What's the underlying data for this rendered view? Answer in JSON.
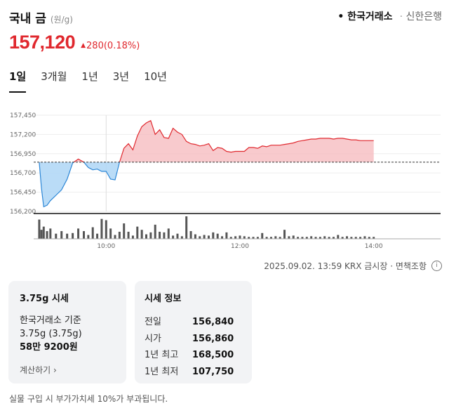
{
  "header": {
    "title": "국내 금",
    "unit": "(원/g)",
    "sources": [
      {
        "label": "한국거래소",
        "active": true
      },
      {
        "label": "신한은행",
        "active": false
      }
    ]
  },
  "price": {
    "current": "157,120",
    "change": "280",
    "change_pct": "(0.18%)",
    "direction": "up",
    "color_up": "#e0282e"
  },
  "tabs": [
    {
      "label": "1일",
      "active": true
    },
    {
      "label": "3개월",
      "active": false
    },
    {
      "label": "1년",
      "active": false
    },
    {
      "label": "3년",
      "active": false
    },
    {
      "label": "10년",
      "active": false
    }
  ],
  "chart_data": {
    "type": "line",
    "y_ticks": [
      "157,450",
      "157,200",
      "156,950",
      "156,700",
      "156,450",
      "156,200"
    ],
    "x_ticks": [
      "10:00",
      "12:00",
      "14:00"
    ],
    "ylim": [
      156200,
      157450
    ],
    "xlim_minutes": [
      535,
      900
    ],
    "baseline": 156840,
    "fill_above_color": "#f6b8bc",
    "fill_below_color": "#aed6f6",
    "line_up_color": "#e0282e",
    "line_down_color": "#2b86d6",
    "volume_color": "#555555",
    "series": {
      "x_minutes": [
        540,
        542,
        544,
        547,
        550,
        555,
        560,
        565,
        570,
        575,
        580,
        584,
        588,
        592,
        596,
        600,
        604,
        608,
        612,
        616,
        620,
        624,
        628,
        632,
        636,
        640,
        644,
        648,
        652,
        656,
        660,
        664,
        668,
        672,
        676,
        680,
        684,
        688,
        692,
        696,
        700,
        704,
        708,
        712,
        716,
        720,
        724,
        728,
        732,
        736,
        740,
        744,
        748,
        752,
        756,
        760,
        764,
        768,
        772,
        776,
        780,
        784,
        788,
        792,
        796,
        800,
        804,
        808,
        812,
        816,
        820,
        824,
        828,
        832,
        836,
        840
      ],
      "values": [
        156840,
        156500,
        156260,
        156280,
        156340,
        156410,
        156480,
        156620,
        156830,
        156880,
        156840,
        156770,
        156740,
        156750,
        156720,
        156720,
        156620,
        156610,
        156840,
        157020,
        157080,
        157000,
        157180,
        157300,
        157350,
        157380,
        157200,
        157260,
        157160,
        157150,
        157280,
        157230,
        157200,
        157110,
        157080,
        157070,
        157050,
        157060,
        157080,
        156990,
        157030,
        157020,
        156980,
        156970,
        156980,
        156980,
        156980,
        157030,
        157030,
        157020,
        157050,
        157040,
        157060,
        157060,
        157060,
        157070,
        157080,
        157090,
        157110,
        157120,
        157130,
        157140,
        157140,
        157150,
        157150,
        157150,
        157140,
        157150,
        157150,
        157140,
        157130,
        157130,
        157120,
        157120,
        157120,
        157120
      ]
    },
    "volume": [
      3,
      1.4,
      1.9,
      1.2,
      1.6,
      0.8,
      1.2,
      0.8,
      0.9,
      1.6,
      1.2,
      0.6,
      1.8,
      0.8,
      3.1,
      2.9,
      1.6,
      0.6,
      1.1,
      2.4,
      1.1,
      0.5,
      1.9,
      1.4,
      0.7,
      1.0,
      2.2,
      1.1,
      1.0,
      1.6,
      0.5,
      0.8,
      0.4,
      3.5,
      1.2,
      0.7,
      0.4,
      0.6,
      0.5,
      1.0,
      0.8,
      0.4,
      1.0,
      0.3,
      0.4,
      0.5,
      0.4,
      0.3,
      0.3,
      0.3,
      0.9,
      0.3,
      0.3,
      0.4,
      0.3,
      1.4,
      0.4,
      0.5,
      0.3,
      0.3,
      0.3,
      0.4,
      0.3,
      0.3,
      0.4,
      0.3,
      0.3,
      0.6,
      0.3,
      0.4,
      0.3,
      0.3,
      0.3,
      0.4,
      0.3,
      0.3
    ]
  },
  "footnote": {
    "text": "2025.09.02. 13:59 KRX 금시장 · 면책조항",
    "icon": "info-icon"
  },
  "card1": {
    "title": "3.75g 시세",
    "line1": "한국거래소 기준",
    "line2": "3.75g (3.75g)",
    "line3": "58만 9200원",
    "link": "계산하기"
  },
  "card2": {
    "title": "시세 정보",
    "rows": [
      {
        "label": "전일",
        "value": "156,840"
      },
      {
        "label": "시가",
        "value": "156,860"
      },
      {
        "label": "1년 최고",
        "value": "168,500"
      },
      {
        "label": "1년 최저",
        "value": "107,750"
      }
    ]
  },
  "bottom_note": "실물 구입 시 부가가치세 10%가 부과됩니다."
}
